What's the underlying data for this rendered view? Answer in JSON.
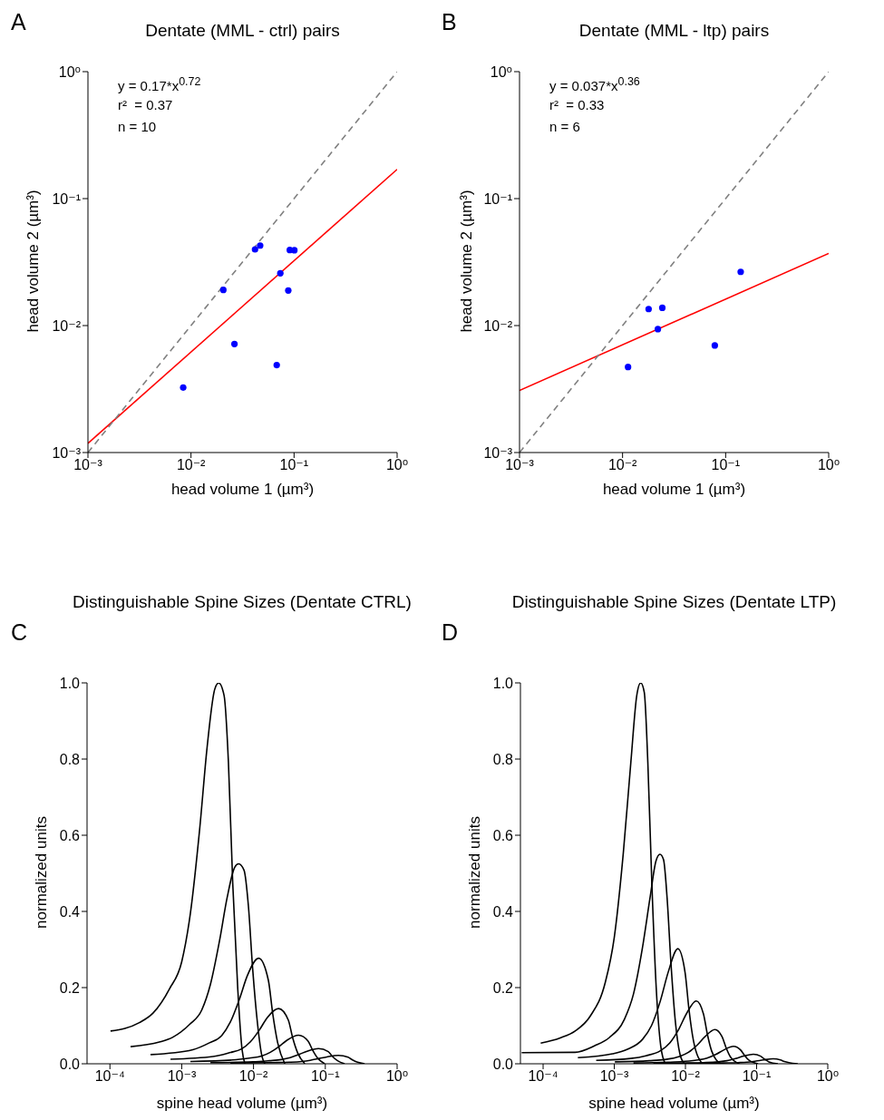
{
  "chart_data": [
    {
      "type": "scatter",
      "title": "Dentate (MML - ctrl) pairs",
      "xlabel": "head volume 1 (µm³)",
      "ylabel": "head volume 2 (µm³)",
      "annotations": [
        "A",
        "y = 0.17*x$^{0.72}$",
        "r²  = 0.37",
        "n = 10"
      ],
      "log": "xy",
      "xlim": [
        0.001,
        1
      ],
      "ylim": [
        0.001,
        1
      ],
      "xticks": [
        {
          "value": 0.001,
          "label": "10⁻³"
        },
        {
          "value": 0.01,
          "label": "10⁻²"
        },
        {
          "value": 0.1,
          "label": "10⁻¹"
        },
        {
          "value": 1,
          "label": "10⁰"
        }
      ],
      "yticks": [
        {
          "value": 0.001,
          "label": "10⁻³"
        },
        {
          "value": 0.01,
          "label": "10⁻²"
        },
        {
          "value": 0.1,
          "label": "10⁻¹"
        },
        {
          "value": 1,
          "label": "10⁰"
        }
      ],
      "series": [
        {
          "color": "#0000ff",
          "marker": "circle",
          "x": [
            0.0084,
            0.0206,
            0.0264,
            0.0418,
            0.0469,
            0.0679,
            0.0736,
            0.0879,
            0.0909,
            0.1007
          ],
          "values": [
            0.00325,
            0.0191,
            0.00716,
            0.0398,
            0.0427,
            0.00488,
            0.0258,
            0.0189,
            0.0394,
            0.0392
          ]
        },
        {
          "type": "line",
          "color": "#ff0000",
          "line_style": "solid",
          "x": [
            0.001,
            1
          ],
          "values": [
            0.00118,
            0.17
          ]
        },
        {
          "type": "line",
          "color": "#808080",
          "line_style": "dashed",
          "x": [
            0.001,
            1
          ],
          "values": [
            0.001,
            1
          ]
        }
      ]
    },
    {
      "type": "scatter",
      "title": "Dentate (MML - ltp) pairs",
      "xlabel": "head volume 1 (µm³)",
      "ylabel": "head volume 2 (µm³)",
      "annotations": [
        "B",
        "y = 0.037*x$^{0.36}$",
        "r²  = 0.33",
        "n = 6"
      ],
      "log": "xy",
      "xlim": [
        0.001,
        1
      ],
      "ylim": [
        0.001,
        1
      ],
      "xticks": [
        {
          "value": 0.001,
          "label": "10⁻³"
        },
        {
          "value": 0.01,
          "label": "10⁻²"
        },
        {
          "value": 0.1,
          "label": "10⁻¹"
        },
        {
          "value": 1,
          "label": "10⁰"
        }
      ],
      "yticks": [
        {
          "value": 0.001,
          "label": "10⁻³"
        },
        {
          "value": 0.01,
          "label": "10⁻²"
        },
        {
          "value": 0.1,
          "label": "10⁻¹"
        },
        {
          "value": 1,
          "label": "10⁰"
        }
      ],
      "series": [
        {
          "color": "#0000ff",
          "marker": "circle",
          "x": [
            0.0113,
            0.0179,
            0.0243,
            0.022,
            0.0785,
            0.14
          ],
          "values": [
            0.00472,
            0.0135,
            0.0138,
            0.00937,
            0.00697,
            0.0265
          ]
        },
        {
          "type": "line",
          "color": "#ff0000",
          "line_style": "solid",
          "x": [
            0.001,
            1
          ],
          "values": [
            0.00308,
            0.037
          ]
        },
        {
          "type": "line",
          "color": "#808080",
          "line_style": "dashed",
          "x": [
            0.001,
            1
          ],
          "values": [
            0.001,
            1
          ]
        }
      ]
    },
    {
      "type": "line",
      "title": "Distinguishable Spine Sizes (Dentate CTRL)",
      "xlabel": "spine head volume (µm³)",
      "ylabel": "normalized units",
      "annotations": [
        "C"
      ],
      "log": "x",
      "xlim": [
        4.8e-05,
        1
      ],
      "ylim": [
        0,
        1
      ],
      "xticks": [
        {
          "value": 0.0001,
          "label": "10⁻⁴"
        },
        {
          "value": 0.001,
          "label": "10⁻³"
        },
        {
          "value": 0.01,
          "label": "10⁻²"
        },
        {
          "value": 0.1,
          "label": "10⁻¹"
        },
        {
          "value": 1,
          "label": "10⁰"
        }
      ],
      "yticks": [
        {
          "value": 0,
          "label": "0.0"
        },
        {
          "value": 0.2,
          "label": "0.2"
        },
        {
          "value": 0.4,
          "label": "0.4"
        },
        {
          "value": 0.6,
          "label": "0.6"
        },
        {
          "value": 0.8,
          "label": "0.8"
        },
        {
          "value": 1,
          "label": "1.0"
        }
      ],
      "series": [
        {
          "color": "#000000",
          "x": [
            0.000102,
            0.000257,
            0.000398,
            0.000676,
            0.001,
            0.00132,
            0.00178,
            0.00226,
            0.00288,
            0.00327,
            0.00389,
            0.00447,
            0.00513,
            0.00603,
            0.00692,
            0.00759
          ],
          "values": [
            0.086,
            0.108,
            0.133,
            0.197,
            0.268,
            0.395,
            0.617,
            0.832,
            0.983,
            1.0,
            0.967,
            0.792,
            0.475,
            0.197,
            0.038,
            0
          ]
        },
        {
          "color": "#000000",
          "x": [
            0.000194,
            0.000488,
            0.000755,
            0.00128,
            0.0019,
            0.0025,
            0.00337,
            0.0043,
            0.00547,
            0.00621,
            0.00738,
            0.00847,
            0.00973,
            0.0114,
            0.0131,
            0.0144
          ],
          "values": [
            0.045,
            0.057,
            0.07,
            0.103,
            0.141,
            0.207,
            0.324,
            0.437,
            0.516,
            0.525,
            0.508,
            0.416,
            0.249,
            0.103,
            0.02,
            0
          ]
        },
        {
          "color": "#000000",
          "x": [
            0.000368,
            0.00143,
            0.00243,
            0.0036,
            0.00474,
            0.0064,
            0.00815,
            0.0118,
            0.0161,
            0.0185,
            0.0217,
            0.0273
          ],
          "values": [
            0.024,
            0.037,
            0.055,
            0.074,
            0.109,
            0.171,
            0.23,
            0.277,
            0.219,
            0.132,
            0.055,
            0
          ]
        },
        {
          "color": "#000000",
          "x": [
            0.000698,
            0.00272,
            0.00461,
            0.00682,
            0.00899,
            0.0121,
            0.0155,
            0.0223,
            0.0305,
            0.035,
            0.0411,
            0.0518
          ],
          "values": [
            0.012,
            0.019,
            0.029,
            0.039,
            0.057,
            0.089,
            0.121,
            0.145,
            0.115,
            0.069,
            0.029,
            0
          ]
        },
        {
          "color": "#000000",
          "x": [
            0.00132,
            0.00515,
            0.00875,
            0.0129,
            0.0171,
            0.023,
            0.0293,
            0.0424,
            0.0578,
            0.0664,
            0.078,
            0.0982
          ],
          "values": [
            0.006,
            0.01,
            0.015,
            0.02,
            0.03,
            0.046,
            0.062,
            0.075,
            0.059,
            0.036,
            0.015,
            0
          ]
        },
        {
          "color": "#000000",
          "x": [
            0.00251,
            0.00977,
            0.0166,
            0.0245,
            0.0324,
            0.0437,
            0.0556,
            0.0804,
            0.11,
            0.126,
            0.148,
            0.186
          ],
          "values": [
            0.003,
            0.005,
            0.008,
            0.011,
            0.016,
            0.025,
            0.033,
            0.04,
            0.032,
            0.019,
            0.008,
            0
          ]
        },
        {
          "color": "#000000",
          "x": [
            0.00476,
            0.0185,
            0.0315,
            0.0466,
            0.0614,
            0.0828,
            0.105,
            0.152,
            0.208,
            0.239,
            0.281,
            0.353
          ],
          "values": [
            0.002,
            0.003,
            0.004,
            0.006,
            0.009,
            0.014,
            0.018,
            0.022,
            0.017,
            0.01,
            0.004,
            0
          ]
        }
      ]
    },
    {
      "type": "line",
      "title": "Distinguishable Spine Sizes (Dentate LTP)",
      "xlabel": "spine head volume (µm³)",
      "ylabel": "normalized units",
      "annotations": [
        "D"
      ],
      "log": "x",
      "xlim": [
        4.8e-05,
        1
      ],
      "ylim": [
        0,
        1
      ],
      "xticks": [
        {
          "value": 0.0001,
          "label": "10⁻⁴"
        },
        {
          "value": 0.001,
          "label": "10⁻³"
        },
        {
          "value": 0.01,
          "label": "10⁻²"
        },
        {
          "value": 0.1,
          "label": "10⁻¹"
        },
        {
          "value": 1,
          "label": "10⁰"
        }
      ],
      "yticks": [
        {
          "value": 0,
          "label": "0.0"
        },
        {
          "value": 0.2,
          "label": "0.2"
        },
        {
          "value": 0.4,
          "label": "0.4"
        },
        {
          "value": 0.6,
          "label": "0.6"
        },
        {
          "value": 0.8,
          "label": "0.8"
        },
        {
          "value": 1,
          "label": "1.0"
        }
      ],
      "series": [
        {
          "color": "#000000",
          "x": [
            9.25e-05,
            0.000174,
            0.000282,
            0.000459,
            0.000746,
            0.001,
            0.00134,
            0.00171,
            0.00207,
            0.00235,
            0.00264,
            0.00296,
            0.00337,
            0.00389,
            0.0045,
            0.0052
          ],
          "values": [
            0.054,
            0.068,
            0.086,
            0.125,
            0.213,
            0.332,
            0.554,
            0.792,
            0.967,
            1.0,
            0.975,
            0.792,
            0.475,
            0.197,
            0.046,
            0
          ]
        },
        {
          "color": "#000000",
          "x": [
            5e-05,
            0.000282,
            0.000526,
            0.000855,
            0.00139,
            0.00186,
            0.00249,
            0.00318,
            0.00385,
            0.00438,
            0.00492,
            0.00552,
            0.00627,
            0.00724,
            0.00838,
            0.00968
          ],
          "values": [
            0.029,
            0.03,
            0.047,
            0.069,
            0.117,
            0.183,
            0.305,
            0.436,
            0.532,
            0.55,
            0.536,
            0.436,
            0.261,
            0.108,
            0.025,
            0
          ]
        },
        {
          "color": "#000000",
          "x": [
            0.000308,
            0.000942,
            0.00153,
            0.00249,
            0.00333,
            0.00447,
            0.00569,
            0.00783,
            0.00989,
            0.0112,
            0.013,
            0.0173
          ],
          "values": [
            0.016,
            0.026,
            0.038,
            0.064,
            0.1,
            0.167,
            0.239,
            0.302,
            0.239,
            0.143,
            0.059,
            0
          ]
        },
        {
          "color": "#000000",
          "x": [
            0.000557,
            0.0017,
            0.00277,
            0.0045,
            0.00603,
            0.00807,
            0.0103,
            0.0142,
            0.0179,
            0.0203,
            0.0234,
            0.0313
          ],
          "values": [
            0.009,
            0.014,
            0.021,
            0.035,
            0.055,
            0.091,
            0.131,
            0.165,
            0.131,
            0.078,
            0.033,
            0
          ]
        },
        {
          "color": "#000000",
          "x": [
            0.00102,
            0.00311,
            0.00506,
            0.00822,
            0.011,
            0.0148,
            0.0188,
            0.0259,
            0.0327,
            0.0371,
            0.0429,
            0.0573
          ],
          "values": [
            0.005,
            0.008,
            0.011,
            0.019,
            0.03,
            0.05,
            0.071,
            0.09,
            0.071,
            0.043,
            0.018,
            0
          ]
        },
        {
          "color": "#000000",
          "x": [
            0.00186,
            0.00569,
            0.00925,
            0.015,
            0.0201,
            0.027,
            0.0344,
            0.0473,
            0.0597,
            0.0678,
            0.0783,
            0.105
          ],
          "values": [
            0.002,
            0.004,
            0.006,
            0.01,
            0.015,
            0.025,
            0.036,
            0.046,
            0.036,
            0.022,
            0.009,
            0
          ]
        },
        {
          "color": "#000000",
          "x": [
            0.00354,
            0.0108,
            0.0176,
            0.0286,
            0.0383,
            0.0513,
            0.0653,
            0.09,
            0.114,
            0.129,
            0.149,
            0.199
          ],
          "values": [
            0.001,
            0.002,
            0.003,
            0.005,
            0.008,
            0.014,
            0.02,
            0.025,
            0.02,
            0.012,
            0.005,
            0
          ]
        },
        {
          "color": "#000000",
          "x": [
            0.00675,
            0.0206,
            0.0335,
            0.0545,
            0.0729,
            0.0977,
            0.124,
            0.171,
            0.216,
            0.245,
            0.284,
            0.379
          ],
          "values": [
            0.001,
            0.001,
            0.002,
            0.003,
            0.004,
            0.007,
            0.01,
            0.013,
            0.01,
            0.006,
            0.003,
            0
          ]
        }
      ]
    }
  ]
}
